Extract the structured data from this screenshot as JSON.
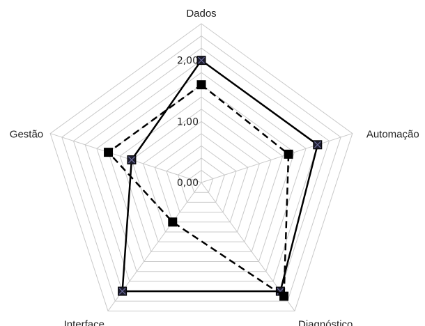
{
  "chart_data": {
    "type": "radar",
    "axes": [
      "Dados",
      "Automação",
      "Diagnóstico",
      "Interface",
      "Gestão"
    ],
    "rlim": [
      0,
      2.6
    ],
    "ticks": [
      {
        "value": 0,
        "label": "0,00"
      },
      {
        "value": 1,
        "label": "1,00"
      },
      {
        "value": 2,
        "label": "2,00"
      }
    ],
    "grid": true,
    "grid_step": 0.2,
    "series": [
      {
        "style": "solid",
        "marker": "square-x",
        "color": "#000000",
        "values": [
          2.0,
          2.0,
          2.2,
          2.2,
          1.2
        ]
      },
      {
        "style": "dashed",
        "marker": "square",
        "color": "#000000",
        "values": [
          1.6,
          1.5,
          2.3,
          0.8,
          1.6
        ]
      }
    ]
  }
}
